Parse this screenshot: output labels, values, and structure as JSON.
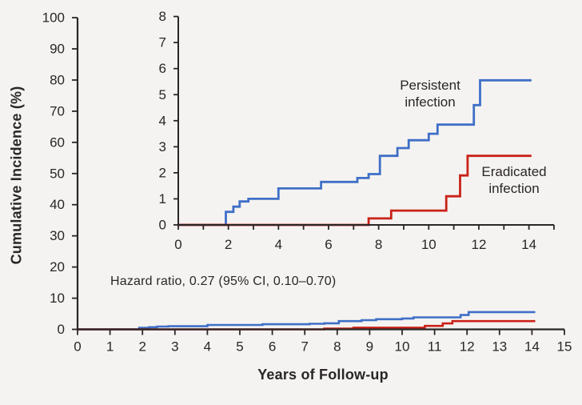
{
  "figure": {
    "background": "#f5f3f1",
    "ink": "#2a2627",
    "ylabel": "Cumulative Incidence (%)",
    "xlabel": "Years of Follow-up",
    "hazard_note": "Hazard ratio, 0.27 (95% CI, 0.10–0.70)"
  },
  "labels": {
    "persistent": [
      "Persistent",
      "infection"
    ],
    "eradicated": [
      "Eradicated",
      "infection"
    ]
  },
  "colors": {
    "persistent": "#3f6fc7",
    "eradicated": "#c92218",
    "axis": "#2a2627"
  },
  "chart_data": [
    {
      "id": "main",
      "type": "line",
      "subtype": "cumulative-incidence-step",
      "title": "",
      "xlabel": "Years of Follow-up",
      "ylabel": "Cumulative Incidence (%)",
      "xlim": [
        0,
        15
      ],
      "ylim": [
        0,
        100
      ],
      "xticks": [
        0,
        1,
        2,
        3,
        4,
        5,
        6,
        7,
        8,
        9,
        10,
        11,
        12,
        13,
        14,
        15
      ],
      "xtick_labels": [
        0,
        1,
        2,
        3,
        4,
        5,
        6,
        7,
        8,
        9,
        10,
        11,
        12,
        13,
        14,
        15
      ],
      "yticks": [
        0,
        10,
        20,
        30,
        40,
        50,
        60,
        70,
        80,
        90,
        100
      ],
      "grid": false,
      "legend_position": "none",
      "annotation": "Hazard ratio, 0.27 (95% CI, 0.10–0.70)",
      "series": [
        {
          "name": "Persistent infection",
          "color": "#3f6fc7",
          "start": 0,
          "end": 14.1,
          "steps": [
            [
              1.9,
              0.5
            ],
            [
              2.2,
              0.7
            ],
            [
              2.45,
              0.9
            ],
            [
              2.8,
              1.0
            ],
            [
              4.0,
              1.4
            ],
            [
              5.7,
              1.65
            ],
            [
              7.15,
              1.8
            ],
            [
              7.6,
              1.95
            ],
            [
              8.05,
              2.65
            ],
            [
              8.75,
              2.95
            ],
            [
              9.2,
              3.25
            ],
            [
              10.0,
              3.5
            ],
            [
              10.35,
              3.85
            ],
            [
              11.8,
              4.6
            ],
            [
              12.05,
              5.55
            ]
          ]
        },
        {
          "name": "Eradicated infection",
          "color": "#c92218",
          "start": 0,
          "end": 14.1,
          "steps": [
            [
              7.6,
              0.25
            ],
            [
              8.5,
              0.55
            ],
            [
              10.7,
              1.1
            ],
            [
              11.25,
              1.9
            ],
            [
              11.55,
              2.65
            ]
          ]
        }
      ]
    },
    {
      "id": "inset",
      "type": "line",
      "subtype": "cumulative-incidence-step-zoom",
      "title": "",
      "xlabel": "",
      "ylabel": "",
      "xlim": [
        0,
        15
      ],
      "ylim": [
        0,
        8
      ],
      "xticks": [
        0,
        1,
        2,
        3,
        4,
        5,
        6,
        7,
        8,
        9,
        10,
        11,
        12,
        13,
        14,
        15
      ],
      "xtick_labels": [
        0,
        2,
        4,
        6,
        8,
        10,
        12,
        14
      ],
      "yticks": [
        0,
        1,
        2,
        3,
        4,
        5,
        6,
        7,
        8
      ],
      "grid": false,
      "legend_position": "inline-labels",
      "series_ref": 0,
      "series_labels": [
        "Persistent infection",
        "Eradicated infection"
      ]
    }
  ]
}
